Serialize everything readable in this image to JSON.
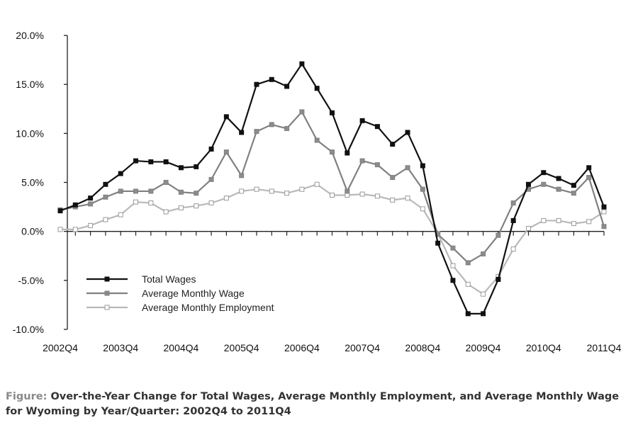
{
  "chart_data": {
    "type": "line",
    "categories": [
      "2002Q4",
      "2003Q1",
      "2003Q2",
      "2003Q3",
      "2003Q4",
      "2004Q1",
      "2004Q2",
      "2004Q3",
      "2004Q4",
      "2005Q1",
      "2005Q2",
      "2005Q3",
      "2005Q4",
      "2006Q1",
      "2006Q2",
      "2006Q3",
      "2006Q4",
      "2007Q1",
      "2007Q2",
      "2007Q3",
      "2007Q4",
      "2008Q1",
      "2008Q2",
      "2008Q3",
      "2008Q4",
      "2009Q1",
      "2009Q2",
      "2009Q3",
      "2009Q4",
      "2010Q1",
      "2010Q2",
      "2010Q3",
      "2010Q4",
      "2011Q1",
      "2011Q2",
      "2011Q3",
      "2011Q4"
    ],
    "x_tick_labels": [
      "2002Q4",
      "2003Q4",
      "2004Q4",
      "2005Q4",
      "2006Q4",
      "2007Q4",
      "2008Q4",
      "2009Q4",
      "2010Q4",
      "2011Q4"
    ],
    "y_tick_labels": [
      "20.0%",
      "15.0%",
      "10.0%",
      "5.0%",
      "0.0%",
      "-5.0%",
      "-10.0%"
    ],
    "ylim": [
      -10,
      20
    ],
    "y_unit": "%",
    "grid": false,
    "legend_position": "lower-left",
    "series": [
      {
        "name": "Total Wages",
        "color": "#111111",
        "marker_fill": "#111111",
        "values": [
          2.1,
          2.7,
          3.4,
          4.8,
          5.9,
          7.2,
          7.1,
          7.1,
          6.5,
          6.6,
          8.4,
          11.7,
          10.1,
          15.0,
          15.5,
          14.8,
          17.1,
          14.6,
          12.1,
          8.0,
          11.3,
          10.7,
          8.9,
          10.1,
          6.7,
          -1.2,
          -5.0,
          -8.4,
          -8.4,
          -4.9,
          1.1,
          4.8,
          6.0,
          5.4,
          4.7,
          6.5,
          2.5
        ]
      },
      {
        "name": "Average Monthly Wage",
        "color": "#808080",
        "marker_fill": "#8c8c8c",
        "values": [
          2.2,
          2.5,
          2.8,
          3.5,
          4.1,
          4.1,
          4.1,
          5.0,
          4.0,
          3.9,
          5.3,
          8.1,
          5.7,
          10.2,
          10.9,
          10.5,
          12.2,
          9.3,
          8.1,
          4.1,
          7.2,
          6.8,
          5.5,
          6.5,
          4.3,
          -0.3,
          -1.7,
          -3.2,
          -2.3,
          -0.4,
          2.9,
          4.3,
          4.8,
          4.3,
          3.9,
          5.5,
          0.5
        ]
      },
      {
        "name": "Average Monthly Employment",
        "color": "#b9b9b9",
        "marker_fill": "#ffffff",
        "values": [
          0.2,
          0.2,
          0.6,
          1.2,
          1.7,
          3.0,
          2.9,
          2.0,
          2.4,
          2.6,
          2.9,
          3.4,
          4.1,
          4.3,
          4.1,
          3.9,
          4.3,
          4.8,
          3.7,
          3.7,
          3.8,
          3.6,
          3.2,
          3.4,
          2.3,
          -0.2,
          -3.5,
          -5.4,
          -6.4,
          -4.6,
          -1.8,
          0.3,
          1.1,
          1.1,
          0.8,
          1.0,
          2.0
        ]
      }
    ],
    "caption_prefix": "Figure:",
    "caption_text": "Over-the-Year Change for Total Wages, Average Monthly Employment, and Average Monthly Wage for Wyoming by Year/Quarter: 2002Q4 to 2011Q4"
  }
}
